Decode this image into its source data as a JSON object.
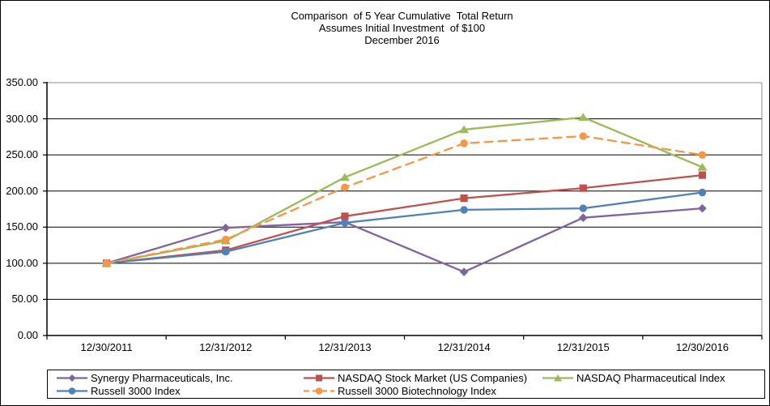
{
  "chart_data": {
    "type": "line",
    "title_lines": [
      "Comparison  of 5 Year Cumulative  Total Return",
      "Assumes Initial Investment  of $100",
      "December 2016"
    ],
    "categories": [
      "12/30/2011",
      "12/31/2012",
      "12/31/2013",
      "12/31/2014",
      "12/31/2015",
      "12/30/2016"
    ],
    "series": [
      {
        "name": "Synergy Pharmaceuticals, Inc.",
        "color": "#8064A2",
        "marker": "diamond",
        "dash": "solid",
        "values": [
          100,
          149,
          157,
          88,
          163,
          176
        ]
      },
      {
        "name": "NASDAQ Stock Market (US Companies)",
        "color": "#C0504D",
        "marker": "square",
        "dash": "solid",
        "values": [
          100,
          118,
          165,
          190,
          204,
          222
        ]
      },
      {
        "name": "NASDAQ Pharmaceutical Index",
        "color": "#9BBB59",
        "marker": "triangle",
        "dash": "solid",
        "values": [
          100,
          131,
          219,
          285,
          302,
          233
        ]
      },
      {
        "name": "Russell 3000 Index",
        "color": "#4F81BD",
        "marker": "circle",
        "dash": "solid",
        "values": [
          100,
          116,
          156,
          174,
          176,
          198
        ]
      },
      {
        "name": "Russell 3000 Biotechnology Index",
        "color": "#F79646",
        "marker": "circle",
        "dash": "dashed",
        "values": [
          100,
          133,
          205,
          266,
          276,
          250
        ]
      }
    ],
    "y_axis": {
      "min": 0,
      "max": 350,
      "step": 50,
      "tick_labels": [
        "0.00",
        "50.00",
        "100.00",
        "150.00",
        "200.00",
        "250.00",
        "300.00",
        "350.00"
      ]
    },
    "x_axis": {
      "tick_labels_are_categories": true
    },
    "grid": true,
    "legend_position": "bottom",
    "colors": {
      "axis": "#000000",
      "gridline": "#000000",
      "plot_top_border": "#8c8c8c",
      "plot_right_border": "#8c8c8c",
      "text": "#000000"
    }
  }
}
